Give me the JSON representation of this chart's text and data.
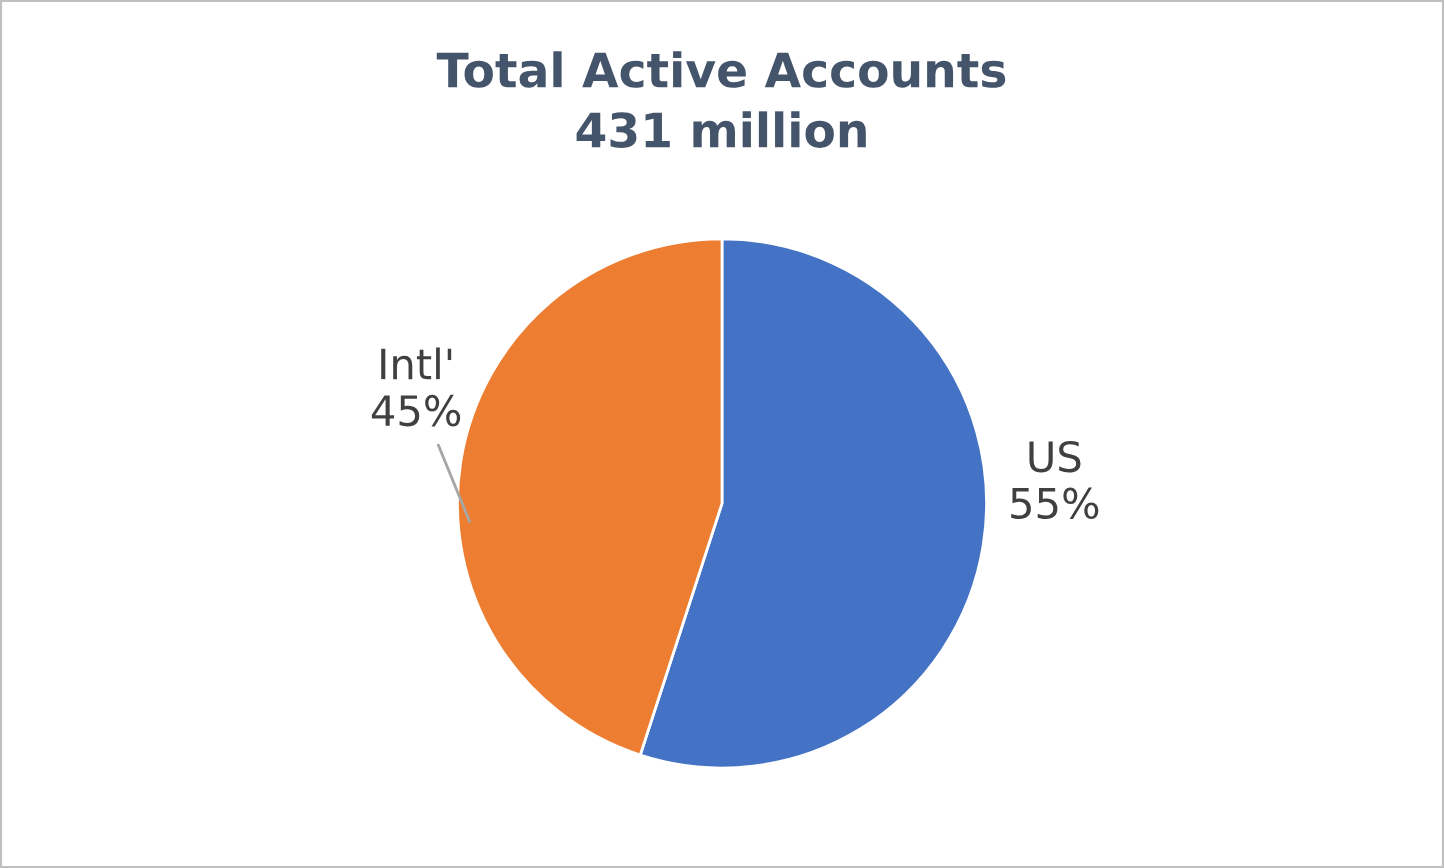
{
  "chart_data": {
    "type": "pie",
    "title": "Total Active Accounts\n431 million",
    "categories": [
      "US",
      "Intl'"
    ],
    "values": [
      55,
      45
    ],
    "colors": [
      "#4472c4",
      "#ed7d31"
    ],
    "value_labels": [
      "55%",
      "45%"
    ],
    "legend": false
  }
}
